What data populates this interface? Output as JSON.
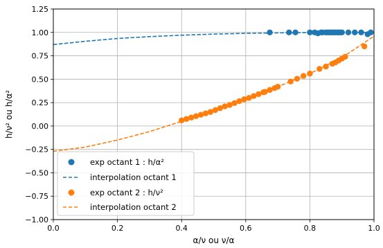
{
  "chart_data": {
    "type": "scatter",
    "xlabel": "α/ν ou ν/α",
    "ylabel": "h/ν² ou h/α²",
    "xlim": [
      0.0,
      1.0
    ],
    "ylim": [
      -1.0,
      1.25
    ],
    "x_ticks": [
      0.0,
      0.2,
      0.4,
      0.6,
      0.8,
      1.0
    ],
    "x_tick_labels": [
      "0.0",
      "0.2",
      "0.4",
      "0.6",
      "0.8",
      "1.0"
    ],
    "y_ticks": [
      -1.0,
      -0.75,
      -0.5,
      -0.25,
      0.0,
      0.25,
      0.5,
      0.75,
      1.0,
      1.25
    ],
    "y_tick_labels": [
      "−1.00",
      "−0.75",
      "−0.50",
      "−0.25",
      "0.00",
      "0.25",
      "0.50",
      "0.75",
      "1.00",
      "1.25"
    ],
    "grid": true,
    "legend_position": "bottom-left",
    "series": [
      {
        "name": "exp octant 1 : h/α²",
        "kind": "scatter",
        "color": "#1f77b4",
        "x": [
          0.675,
          0.735,
          0.755,
          0.8,
          0.815,
          0.825,
          0.835,
          0.84,
          0.85,
          0.855,
          0.86,
          0.865,
          0.87,
          0.875,
          0.88,
          0.885,
          0.89,
          0.895,
          0.9,
          0.92,
          0.94,
          0.96,
          0.98,
          0.99
        ],
        "y": [
          1.0,
          1.0,
          1.0,
          1.0,
          1.0,
          0.99,
          1.0,
          1.0,
          1.0,
          1.0,
          1.0,
          1.0,
          1.0,
          1.0,
          1.0,
          1.0,
          1.0,
          1.0,
          1.0,
          1.0,
          1.0,
          1.0,
          0.98,
          1.0
        ]
      },
      {
        "name": "interpolation octant 1",
        "kind": "line",
        "dash": true,
        "color": "#1f77b4",
        "x": [
          0.0,
          0.1,
          0.2,
          0.3,
          0.4,
          0.5,
          0.6,
          0.7,
          0.8,
          0.9,
          1.0
        ],
        "y": [
          0.87,
          0.905,
          0.935,
          0.955,
          0.97,
          0.982,
          0.99,
          0.995,
          0.998,
          1.0,
          1.0
        ]
      },
      {
        "name": "exp octant 2 : h/ν²",
        "kind": "scatter",
        "color": "#ff7f0e",
        "x": [
          0.4,
          0.415,
          0.43,
          0.445,
          0.46,
          0.475,
          0.49,
          0.505,
          0.52,
          0.535,
          0.55,
          0.565,
          0.58,
          0.595,
          0.61,
          0.625,
          0.64,
          0.655,
          0.66,
          0.675,
          0.69,
          0.7,
          0.74,
          0.76,
          0.78,
          0.8,
          0.83,
          0.85,
          0.87,
          0.88,
          0.89,
          0.9,
          0.91,
          0.97
        ],
        "y": [
          0.06,
          0.075,
          0.09,
          0.105,
          0.12,
          0.135,
          0.15,
          0.17,
          0.19,
          0.21,
          0.225,
          0.245,
          0.265,
          0.285,
          0.3,
          0.32,
          0.34,
          0.36,
          0.365,
          0.385,
          0.405,
          0.42,
          0.475,
          0.505,
          0.535,
          0.56,
          0.61,
          0.635,
          0.665,
          0.68,
          0.7,
          0.72,
          0.74,
          0.85
        ]
      },
      {
        "name": "interpolation octant 2",
        "kind": "line",
        "dash": true,
        "color": "#ff7f0e",
        "x": [
          0.0,
          0.1,
          0.2,
          0.3,
          0.4,
          0.5,
          0.6,
          0.7,
          0.8,
          0.9,
          1.0
        ],
        "y": [
          -0.27,
          -0.225,
          -0.15,
          -0.06,
          0.05,
          0.17,
          0.29,
          0.42,
          0.56,
          0.73,
          0.96
        ]
      }
    ]
  }
}
